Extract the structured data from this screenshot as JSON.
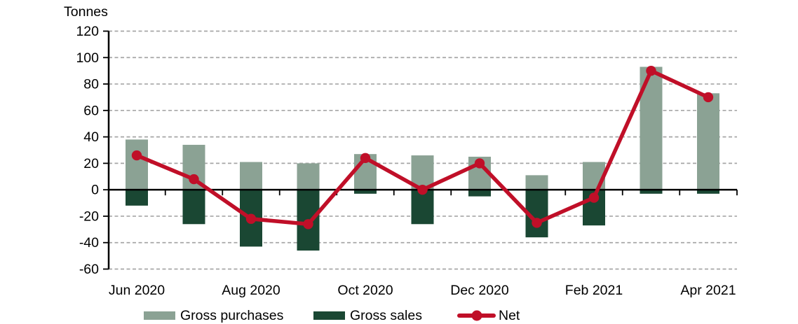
{
  "chart_data": {
    "type": "combo-bar-line",
    "title": "",
    "ylabel": "Tonnes",
    "xlabel": "",
    "n_points": 11,
    "x_tick_labels": [
      "Jun 2020",
      "Aug 2020",
      "Oct 2020",
      "Dec 2020",
      "Feb 2021",
      "Apr 2021"
    ],
    "x_tick_label_indices": [
      0,
      2,
      4,
      6,
      8,
      10
    ],
    "y_ticks": [
      120,
      100,
      80,
      60,
      40,
      20,
      0,
      -20,
      -40,
      -60
    ],
    "ylim": [
      -60,
      120
    ],
    "grid": "horizontal-dashed",
    "legend_position": "bottom",
    "series": [
      {
        "name": "Gross purchases",
        "type": "bar",
        "values": [
          38,
          34,
          21,
          20,
          27,
          26,
          25,
          11,
          21,
          93,
          73
        ]
      },
      {
        "name": "Gross sales",
        "type": "bar",
        "values": [
          -12,
          -26,
          -43,
          -46,
          -3,
          -26,
          -5,
          -36,
          -27,
          -3,
          -3
        ]
      },
      {
        "name": "Net",
        "type": "line",
        "values": [
          26,
          8,
          -22,
          -26,
          24,
          0,
          20,
          -25,
          -6,
          90,
          70
        ]
      }
    ]
  },
  "colors": {
    "purchases": "#8BA294",
    "sales": "#1A4733",
    "net": "#C00F28",
    "grid": "#A6A6A6",
    "axis": "#000000",
    "text": "#000000"
  }
}
